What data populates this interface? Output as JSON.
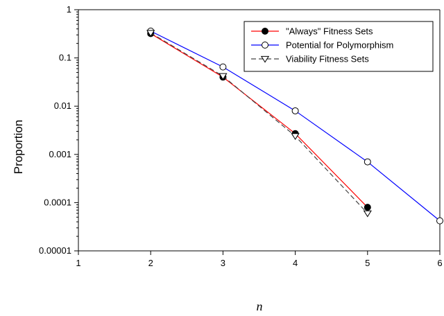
{
  "chart_data": {
    "type": "line",
    "title": "",
    "xlabel": "n",
    "ylabel": "Proportion",
    "xlim": [
      1,
      6
    ],
    "ylim": [
      1e-05,
      1
    ],
    "yscale": "log",
    "xticks": [
      "1",
      "2",
      "3",
      "4",
      "5",
      "6"
    ],
    "yticks": [
      "1",
      "0.1",
      "0.01",
      "0.001",
      "0.0001",
      "0.00001"
    ],
    "grid": false,
    "legend_position": "top-right",
    "series": [
      {
        "name": "\"Always\" Fitness Sets",
        "color": "#ff0000",
        "marker": "filled-circle",
        "line": "solid",
        "x": [
          2,
          3,
          4,
          5
        ],
        "y": [
          0.32,
          0.04,
          0.0027,
          8e-05
        ]
      },
      {
        "name": "Potential for Polymorphism",
        "color": "#0000ff",
        "marker": "open-circle",
        "line": "solid",
        "x": [
          2,
          3,
          4,
          5,
          6
        ],
        "y": [
          0.36,
          0.065,
          0.008,
          0.0007,
          4.2e-05
        ]
      },
      {
        "name": "Viability Fitness Sets",
        "color": "#444444",
        "marker": "open-triangle-down",
        "line": "dashed",
        "x": [
          2,
          3,
          4,
          5
        ],
        "y": [
          0.33,
          0.042,
          0.0024,
          6e-05
        ]
      }
    ]
  }
}
